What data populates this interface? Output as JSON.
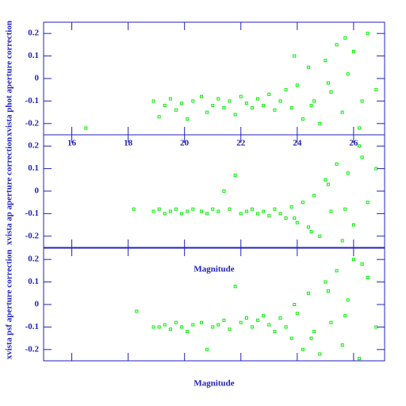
{
  "chart_data": [
    {
      "type": "scatter",
      "ylabel": "xvista phot aperture correction",
      "color": "#00ee00",
      "xlim": [
        15,
        27.1
      ],
      "ylim": [
        -0.25,
        0.25
      ],
      "xticks": [
        16,
        18,
        20,
        22,
        24,
        26
      ],
      "yticks": [
        0.2,
        0.1,
        0,
        -0.1,
        -0.2
      ],
      "xtick_labels": true,
      "x": [
        16.5,
        18.9,
        19.1,
        19.3,
        19.5,
        19.7,
        19.9,
        20.1,
        20.3,
        20.6,
        20.8,
        21.0,
        21.2,
        21.4,
        21.6,
        21.8,
        22.0,
        22.2,
        22.4,
        22.6,
        22.8,
        23.0,
        23.2,
        23.4,
        23.6,
        23.8,
        24.0,
        24.2,
        24.4,
        24.6,
        24.8,
        25.0,
        25.2,
        25.4,
        25.6,
        25.8,
        26.0,
        26.2,
        26.5,
        26.8,
        23.9,
        24.5,
        25.1,
        25.7,
        26.3
      ],
      "y": [
        -0.22,
        -0.1,
        -0.17,
        -0.12,
        -0.09,
        -0.14,
        -0.11,
        -0.18,
        -0.1,
        -0.08,
        -0.15,
        -0.12,
        -0.09,
        -0.13,
        -0.1,
        -0.16,
        -0.08,
        -0.11,
        -0.13,
        -0.09,
        -0.12,
        -0.07,
        -0.14,
        -0.1,
        -0.05,
        -0.13,
        -0.03,
        -0.18,
        0.05,
        -0.1,
        -0.2,
        0.08,
        -0.06,
        0.15,
        -0.15,
        0.02,
        0.12,
        -0.22,
        0.2,
        -0.05,
        0.1,
        -0.12,
        -0.02,
        0.18,
        -0.1
      ]
    },
    {
      "type": "scatter",
      "ylabel": "xvista ap aperture correction",
      "xlabel": "Magnitude",
      "color": "#00ee00",
      "xlim": [
        15,
        27.1
      ],
      "ylim": [
        -0.25,
        0.25
      ],
      "xticks": [
        16,
        18,
        20,
        22,
        24,
        26
      ],
      "yticks": [
        0.2,
        0.1,
        0,
        -0.1,
        -0.2
      ],
      "xtick_labels": false,
      "x": [
        18.2,
        18.9,
        19.1,
        19.3,
        19.5,
        19.7,
        19.9,
        20.1,
        20.3,
        20.6,
        20.8,
        21.0,
        21.2,
        21.4,
        21.6,
        21.8,
        22.0,
        22.2,
        22.4,
        22.6,
        22.8,
        23.0,
        23.2,
        23.4,
        23.6,
        23.8,
        24.0,
        24.2,
        24.4,
        24.6,
        24.8,
        25.0,
        25.2,
        25.4,
        25.6,
        25.8,
        26.0,
        26.2,
        26.5,
        26.8,
        23.9,
        24.5,
        25.1,
        25.7,
        26.3
      ],
      "y": [
        -0.08,
        -0.09,
        -0.08,
        -0.1,
        -0.09,
        -0.08,
        -0.1,
        -0.09,
        -0.08,
        -0.09,
        -0.1,
        -0.08,
        -0.09,
        0.0,
        -0.08,
        0.07,
        -0.1,
        -0.09,
        -0.08,
        -0.1,
        -0.09,
        -0.11,
        -0.08,
        -0.1,
        -0.12,
        -0.07,
        -0.14,
        -0.05,
        -0.16,
        -0.02,
        -0.2,
        0.05,
        -0.09,
        0.12,
        -0.22,
        0.08,
        -0.15,
        0.2,
        -0.05,
        0.1,
        -0.12,
        -0.18,
        0.03,
        -0.08,
        0.15
      ]
    },
    {
      "type": "scatter",
      "ylabel": "xvista psf aperture correction",
      "xlabel": "Magnitude",
      "color": "#00ee00",
      "xlim": [
        15,
        27.1
      ],
      "ylim": [
        -0.25,
        0.25
      ],
      "xticks": [
        16,
        18,
        20,
        22,
        24,
        26
      ],
      "yticks": [
        0.2,
        0.1,
        0,
        -0.1,
        -0.2
      ],
      "xtick_labels": false,
      "x": [
        18.3,
        18.9,
        19.1,
        19.3,
        19.5,
        19.7,
        19.9,
        20.1,
        20.3,
        20.6,
        20.8,
        21.0,
        21.2,
        21.4,
        21.6,
        21.8,
        22.0,
        22.2,
        22.4,
        22.6,
        22.8,
        23.0,
        23.2,
        23.4,
        23.6,
        23.8,
        24.0,
        24.2,
        24.4,
        24.6,
        24.8,
        25.0,
        25.2,
        25.4,
        25.6,
        25.8,
        26.0,
        26.2,
        26.5,
        26.8,
        23.9,
        24.5,
        25.1,
        25.7,
        26.3
      ],
      "y": [
        -0.03,
        -0.1,
        -0.1,
        -0.09,
        -0.11,
        -0.08,
        -0.1,
        -0.12,
        -0.09,
        -0.08,
        -0.2,
        -0.1,
        -0.09,
        -0.07,
        -0.11,
        0.08,
        -0.08,
        -0.06,
        -0.1,
        -0.07,
        -0.05,
        -0.09,
        -0.12,
        -0.06,
        -0.1,
        -0.15,
        -0.04,
        -0.2,
        0.05,
        -0.12,
        -0.22,
        0.1,
        -0.08,
        0.15,
        -0.18,
        0.02,
        0.2,
        -0.24,
        0.12,
        -0.1,
        0.0,
        -0.15,
        0.06,
        -0.05,
        0.18
      ]
    }
  ]
}
